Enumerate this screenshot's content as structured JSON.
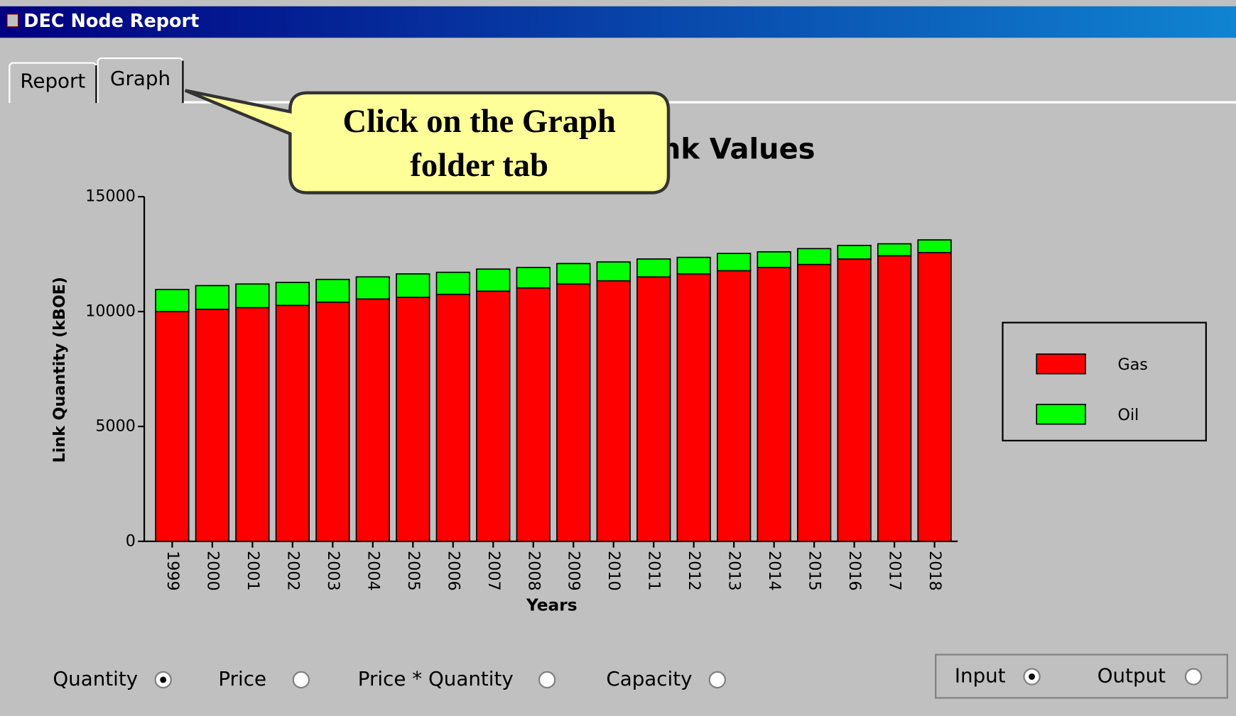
{
  "window": {
    "title": "DEC Node Report"
  },
  "tabs": [
    {
      "label": "Report",
      "active": false
    },
    {
      "label": "Graph",
      "active": true
    }
  ],
  "callout": {
    "lines": [
      "Click on the Graph",
      "folder tab"
    ]
  },
  "chart_data": {
    "type": "stacked_bar",
    "title": "nk Values",
    "x_label": "Years",
    "y_label": "Link Quantity (kBOE)",
    "categories": [
      "1999",
      "2000",
      "2001",
      "2002",
      "2003",
      "2004",
      "2005",
      "2006",
      "2007",
      "2008",
      "2009",
      "2010",
      "2011",
      "2012",
      "2013",
      "2014",
      "2015",
      "2016",
      "2017",
      "2018"
    ],
    "series": [
      {
        "name": "Gas",
        "color": "#ff0000",
        "values": [
          10000,
          10100,
          10170,
          10270,
          10410,
          10550,
          10620,
          10750,
          10890,
          11030,
          11200,
          11340,
          11510,
          11640,
          11780,
          11920,
          12050,
          12290,
          12430,
          12570
        ]
      },
      {
        "name": "Oil",
        "color": "#00ff00",
        "values": [
          960,
          1030,
          1030,
          1000,
          990,
          960,
          1020,
          960,
          960,
          890,
          890,
          820,
          780,
          720,
          750,
          680,
          690,
          590,
          520,
          550
        ]
      }
    ],
    "ylim": [
      0,
      15000
    ],
    "yticks": [
      0,
      5000,
      10000,
      15000
    ],
    "grid": false,
    "legend": "right"
  },
  "controls": {
    "measure": [
      {
        "label": "Quantity",
        "selected": true
      },
      {
        "label": "Price",
        "selected": false
      },
      {
        "label": "Price * Quantity",
        "selected": false
      },
      {
        "label": "Capacity",
        "selected": false
      }
    ],
    "direction": [
      {
        "label": "Input",
        "selected": true
      },
      {
        "label": "Output",
        "selected": false
      }
    ]
  }
}
